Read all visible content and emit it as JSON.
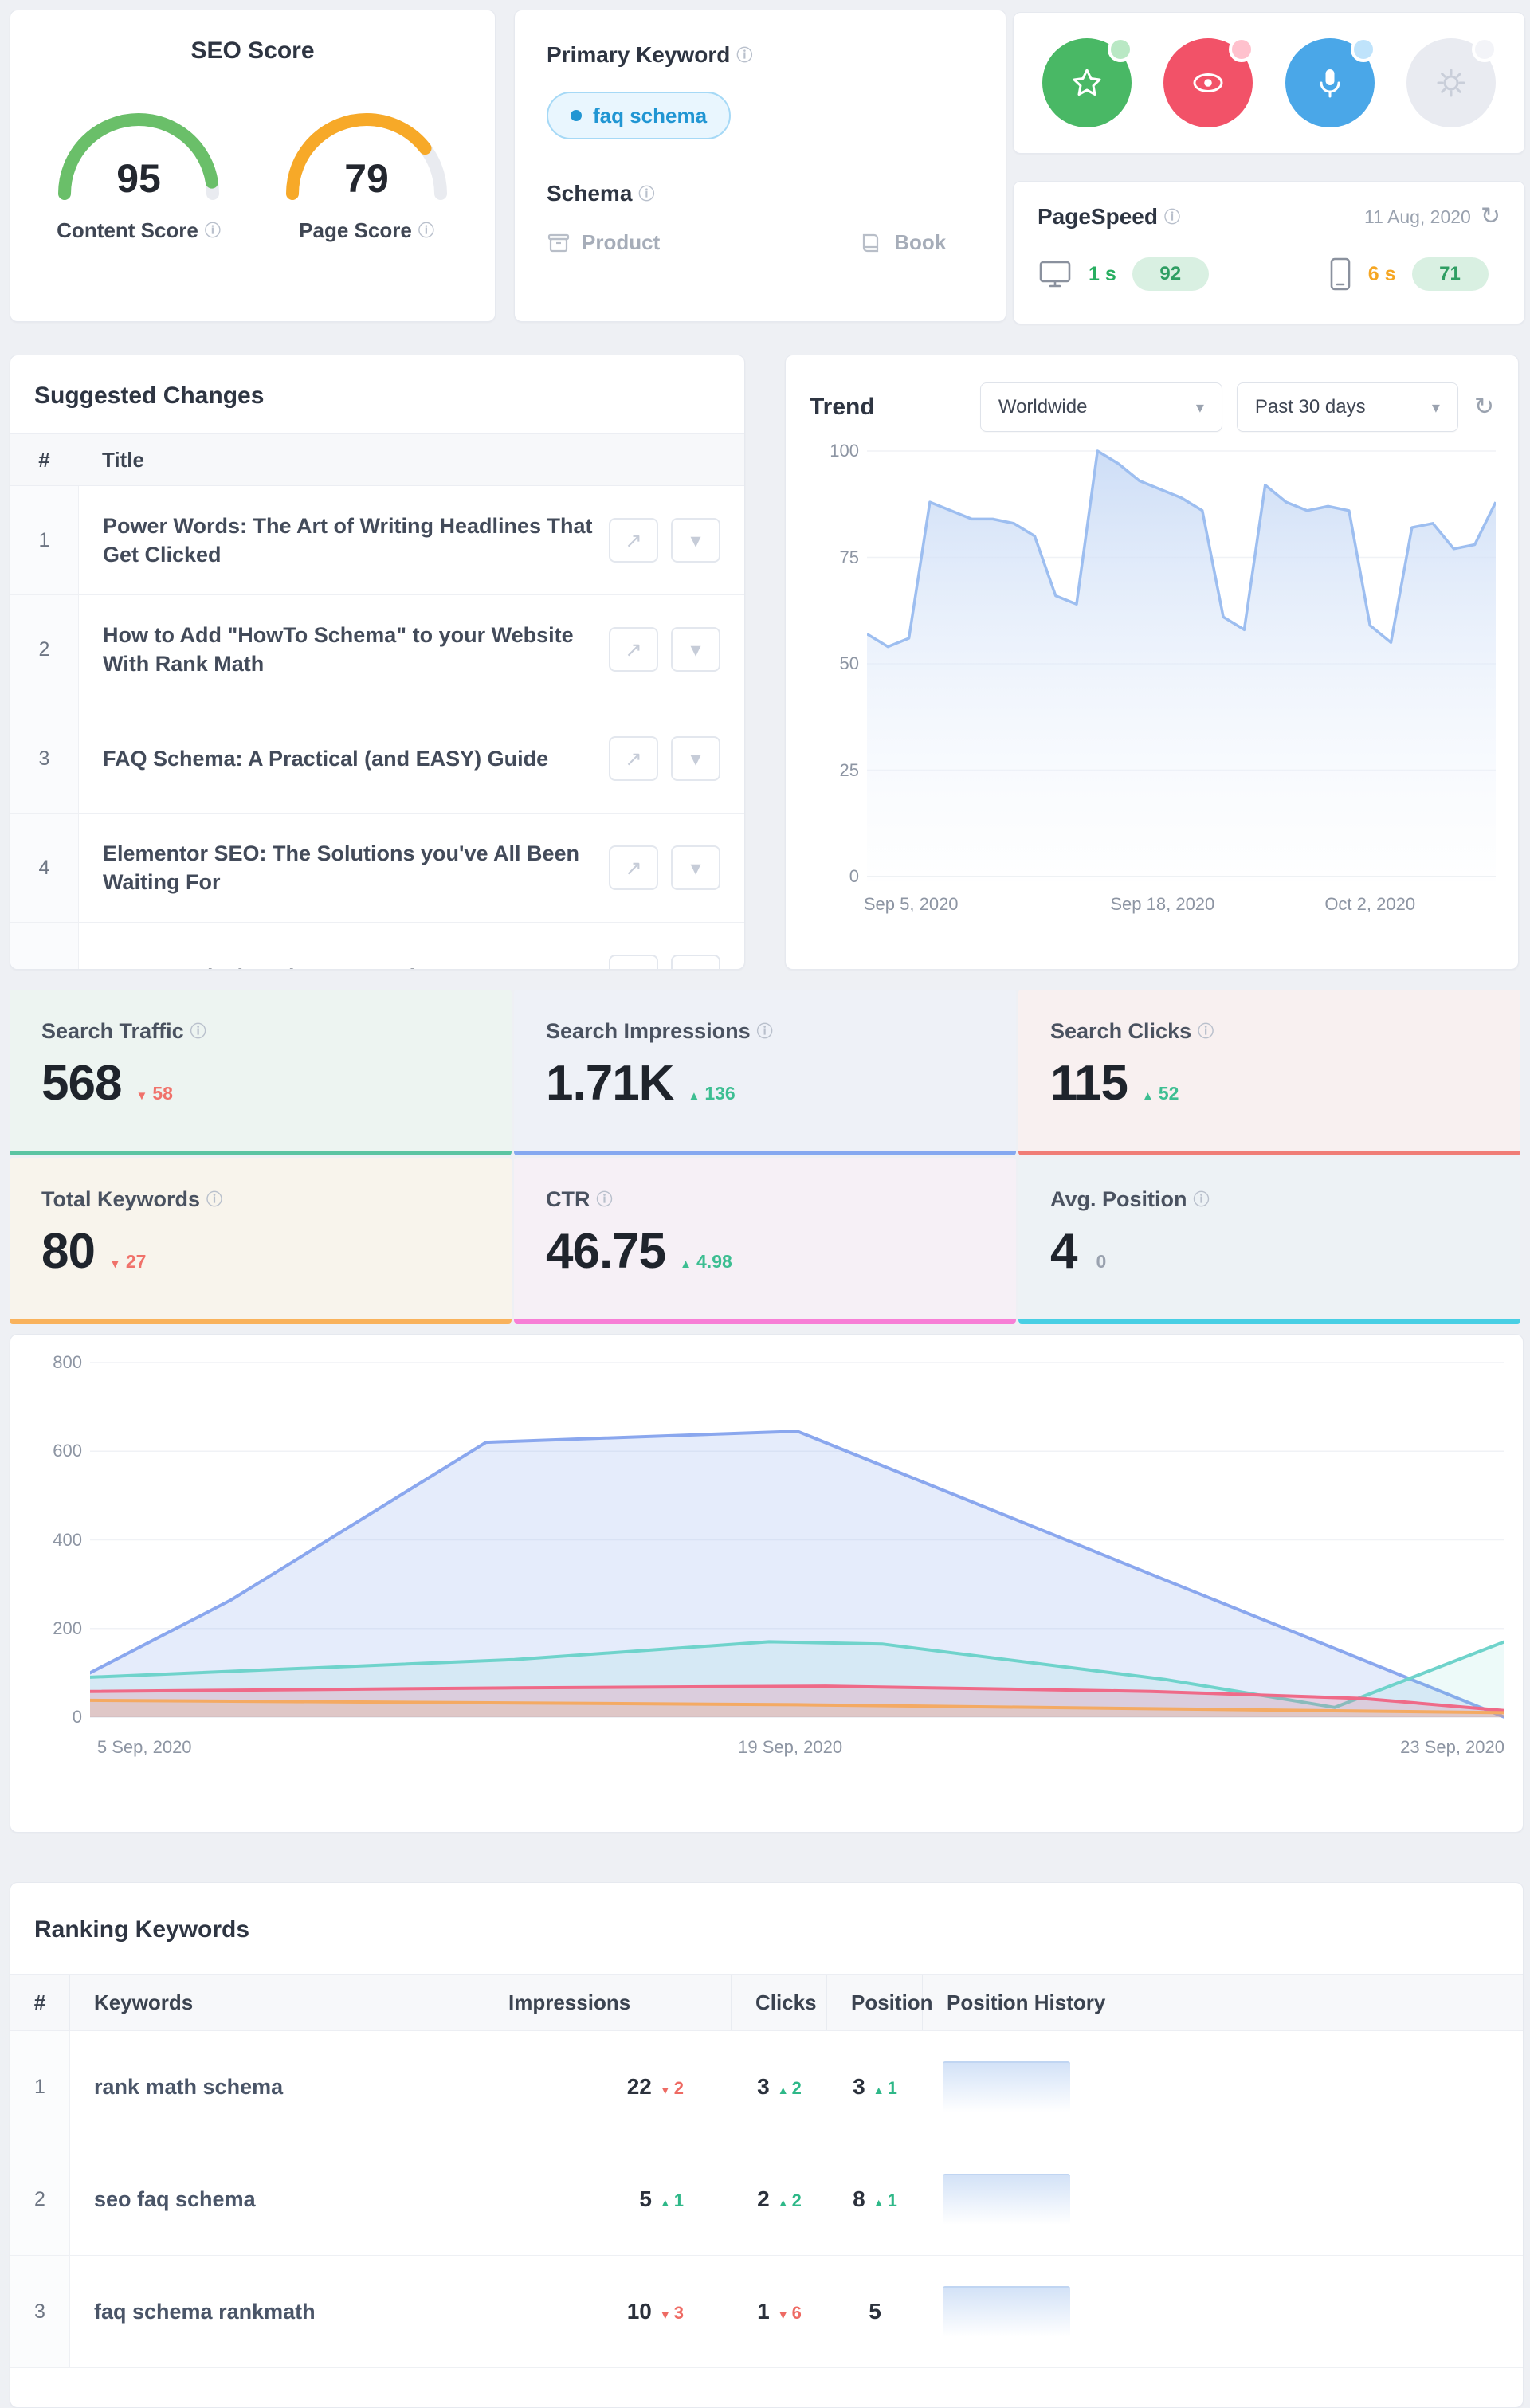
{
  "icons": {
    "info": "ⓘ",
    "chevron_down": "▾",
    "refresh": "↻",
    "arrow_up": "▲",
    "arrow_down": "▼",
    "external": "↗"
  },
  "seo_score_card": {
    "title": "SEO Score",
    "gauges": [
      {
        "value": 95,
        "label": "Content Score",
        "color": "#6abf69"
      },
      {
        "value": 79,
        "label": "Page Score",
        "color": "#f7a928"
      }
    ],
    "track_color": "#e9ebf0"
  },
  "keyword_card": {
    "title": "Primary Keyword",
    "keyword": "faq schema",
    "keyword_color": "#2196d3",
    "schema_label": "Schema",
    "schema_types": [
      {
        "label": "Product"
      },
      {
        "label": "Book"
      }
    ]
  },
  "quick_icons_card": {
    "icons": [
      {
        "name": "star",
        "bg": "#49b865",
        "badge": "#b9e8c4"
      },
      {
        "name": "eye",
        "bg": "#f25268",
        "badge": "#ffc1cd"
      },
      {
        "name": "mic",
        "bg": "#4aa7e8",
        "badge": "#bfe3fb"
      },
      {
        "name": "gear",
        "bg": "#e9ebf1",
        "badge": "#f3f4f8"
      }
    ]
  },
  "pagespeed_card": {
    "title": "PageSpeed",
    "date": "11 Aug, 2020",
    "desktop": {
      "time": "1 s",
      "time_color": "#27ae60",
      "score": "92",
      "score_bg": "#d9f0e2",
      "score_color": "#2f9e63"
    },
    "mobile": {
      "time": "6 s",
      "time_color": "#f5a623",
      "score": "71",
      "score_bg": "#d9f0e2",
      "score_color": "#2f9e63"
    }
  },
  "suggested_changes": {
    "title": "Suggested Changes",
    "col_num": "#",
    "col_title": "Title",
    "rows": [
      "Power Words: The Art of Writing Headlines That Get Clicked",
      "How to Add \"HowTo Schema\" to your Website With Rank Math",
      "FAQ Schema: A Practical (and EASY) Guide",
      "Elementor SEO: The Solutions you've All Been Waiting For",
      "Are You Missing These SEO Elements on Your"
    ]
  },
  "trend_card": {
    "title": "Trend",
    "region_select": "Worldwide",
    "range_select": "Past 30 days"
  },
  "stats": [
    {
      "label": "Search Traffic",
      "value": "568",
      "delta": "58",
      "delta_dir": "down",
      "delta_color": "#f0716a",
      "accent": "#5bc4a2",
      "bg": "#edf4f1"
    },
    {
      "label": "Search Impressions",
      "value": "1.71K",
      "delta": "136",
      "delta_dir": "up",
      "delta_color": "#3dbe92",
      "accent": "#85a8f0",
      "bg": "#eef1f7"
    },
    {
      "label": "Search Clicks",
      "value": "115",
      "delta": "52",
      "delta_dir": "up",
      "delta_color": "#3dbe92",
      "accent": "#f07d76",
      "bg": "#f8f0f0"
    },
    {
      "label": "Total Keywords",
      "value": "80",
      "delta": "27",
      "delta_dir": "down",
      "delta_color": "#f0716a",
      "accent": "#f9b25c",
      "bg": "#f8f4ec"
    },
    {
      "label": "CTR",
      "value": "46.75",
      "delta": "4.98",
      "delta_dir": "up",
      "delta_color": "#3dbe92",
      "accent": "#f77fd6",
      "bg": "#f6f0f6"
    },
    {
      "label": "Avg. Position",
      "value": "4",
      "delta": "0",
      "delta_dir": "none",
      "delta_color": "#9aa2af",
      "accent": "#49cfe4",
      "bg": "#edf2f5"
    }
  ],
  "chart_data": [
    {
      "id": "trend",
      "type": "area",
      "title": "Trend",
      "ylabel": "",
      "xlabel": "",
      "ylim": [
        0,
        100
      ],
      "yticks": [
        100,
        75,
        50,
        25,
        0
      ],
      "xlabels": [
        "Sep 5, 2020",
        "Sep 18, 2020",
        "Oct 2, 2020"
      ],
      "line_color": "#9dbef0",
      "values": [
        57,
        54,
        56,
        88,
        86,
        84,
        84,
        83,
        80,
        66,
        64,
        100,
        97,
        93,
        91,
        89,
        86,
        61,
        58,
        92,
        88,
        86,
        87,
        86,
        59,
        55,
        82,
        83,
        77,
        78,
        88
      ]
    },
    {
      "id": "traffic",
      "type": "line",
      "ylim": [
        0,
        800
      ],
      "yticks": [
        800,
        600,
        400,
        200,
        0
      ],
      "xlabels": [
        "5 Sep, 2020",
        "19 Sep, 2020",
        "23 Sep, 2020"
      ],
      "series": [
        {
          "name": "impressions",
          "color": "#8aa7ee",
          "fill": "rgba(138,167,238,0.22)",
          "points": [
            [
              0,
              100
            ],
            [
              10,
              265
            ],
            [
              28,
              620
            ],
            [
              50,
              645
            ],
            [
              100,
              0
            ]
          ]
        },
        {
          "name": "clicks",
          "color": "#6fd3cb",
          "fill": "rgba(111,211,203,0.12)",
          "points": [
            [
              0,
              90
            ],
            [
              30,
              130
            ],
            [
              48,
              170
            ],
            [
              56,
              165
            ],
            [
              76,
              85
            ],
            [
              88,
              22
            ],
            [
              100,
              170
            ]
          ]
        },
        {
          "name": "traffic",
          "color": "#ef6a88",
          "fill": "rgba(239,106,136,0.22)",
          "points": [
            [
              0,
              58
            ],
            [
              30,
              66
            ],
            [
              52,
              70
            ],
            [
              75,
              58
            ],
            [
              90,
              42
            ],
            [
              100,
              15
            ]
          ]
        },
        {
          "name": "position",
          "color": "#f4aa63",
          "fill": "rgba(244,170,99,0.18)",
          "points": [
            [
              0,
              38
            ],
            [
              50,
              28
            ],
            [
              100,
              10
            ]
          ]
        }
      ]
    }
  ],
  "position_history_style": {
    "top": "#d3e2f7",
    "edge": "#c0d5f2"
  },
  "ranking_keywords": {
    "title": "Ranking Keywords",
    "columns": [
      "#",
      "Keywords",
      "Impressions",
      "Clicks",
      "Position",
      "Position History"
    ],
    "up_color": "#2eb888",
    "down_color": "#ee6a63",
    "rows": [
      {
        "num": "1",
        "keyword": "rank math schema",
        "impressions": {
          "value": "22",
          "delta": "2",
          "dir": "down"
        },
        "clicks": {
          "value": "3",
          "delta": "2",
          "dir": "up"
        },
        "position": {
          "value": "3",
          "delta": "1",
          "dir": "up"
        }
      },
      {
        "num": "2",
        "keyword": "seo faq schema",
        "impressions": {
          "value": "5",
          "delta": "1",
          "dir": "up"
        },
        "clicks": {
          "value": "2",
          "delta": "2",
          "dir": "up"
        },
        "position": {
          "value": "8",
          "delta": "1",
          "dir": "up"
        }
      },
      {
        "num": "3",
        "keyword": "faq schema rankmath",
        "impressions": {
          "value": "10",
          "delta": "3",
          "dir": "down"
        },
        "clicks": {
          "value": "1",
          "delta": "6",
          "dir": "down"
        },
        "position": {
          "value": "5",
          "delta": "",
          "dir": "none"
        }
      }
    ]
  }
}
